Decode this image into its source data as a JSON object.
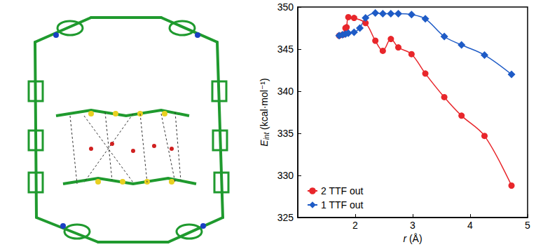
{
  "chart_data": {
    "type": "line",
    "x_label": "r (Å)",
    "y_label": "Eint (kcal·mol⁻¹)",
    "xlim": [
      1,
      5
    ],
    "xticks": [
      2,
      3,
      4,
      5
    ],
    "ylim": [
      325,
      350
    ],
    "yticks": [
      325,
      330,
      335,
      340,
      345,
      350
    ],
    "legend": "lower left",
    "grid": false,
    "series": [
      {
        "name": "2 TTF out",
        "color": "#e8262b",
        "marker": "circle",
        "line_style": "smooth",
        "x": [
          1.72,
          1.78,
          1.83,
          1.85,
          1.88,
          1.98,
          2.18,
          2.35,
          2.48,
          2.62,
          2.75,
          2.98,
          3.22,
          3.55,
          3.85,
          4.25,
          4.72
        ],
        "values": [
          346.6,
          346.7,
          347.5,
          347.6,
          348.8,
          348.7,
          348.1,
          346.0,
          344.8,
          346.2,
          345.2,
          344.4,
          342.1,
          339.3,
          337.1,
          334.7,
          328.8
        ]
      },
      {
        "name": "1 TTF out",
        "color": "#1e5bc6",
        "marker": "diamond",
        "line_style": "smooth",
        "x": [
          1.72,
          1.78,
          1.83,
          1.88,
          1.98,
          2.08,
          2.18,
          2.35,
          2.48,
          2.62,
          2.75,
          2.98,
          3.22,
          3.55,
          3.85,
          4.25,
          4.72
        ],
        "values": [
          346.6,
          346.7,
          346.8,
          346.9,
          347.0,
          347.5,
          348.7,
          349.3,
          349.2,
          349.2,
          349.2,
          349.1,
          348.6,
          346.5,
          345.5,
          344.3,
          342.0
        ]
      }
    ]
  }
}
